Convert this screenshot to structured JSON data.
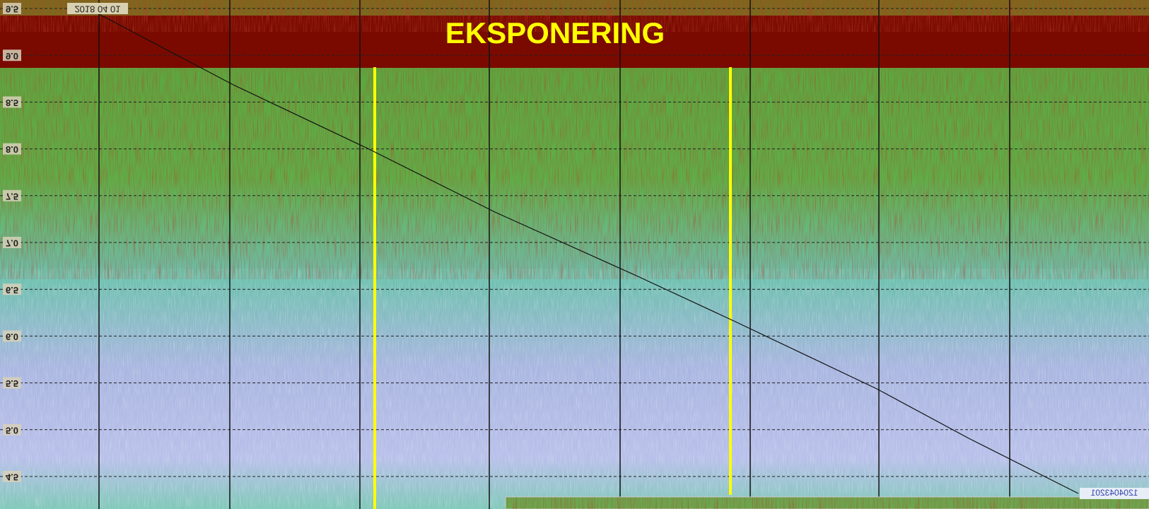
{
  "banner": "EKSPONERING",
  "date_label": "2018 04 01",
  "corner_label": "1204043201",
  "axis": {
    "labels": [
      "9.5",
      "9.0",
      "8.5",
      "8.0",
      "7.5",
      "7.0",
      "6.5",
      "6.0",
      "5.5",
      "5.0",
      "4.5"
    ]
  }
}
